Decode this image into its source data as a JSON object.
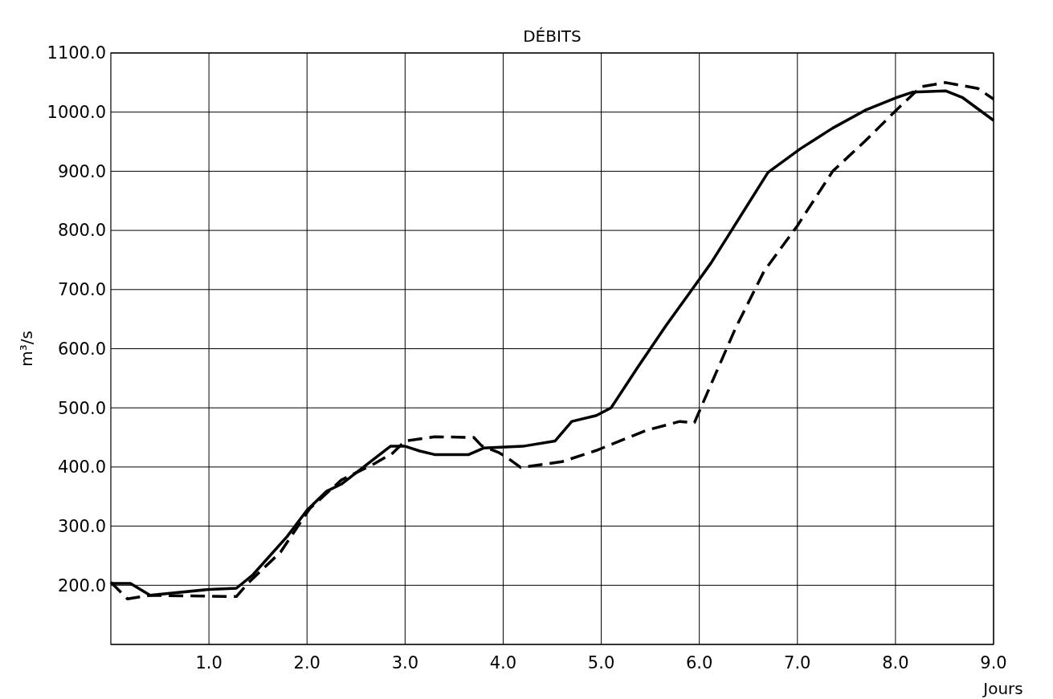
{
  "chart_data": {
    "type": "line",
    "title": "DÉBITS",
    "xlabel": "Jours",
    "ylabel": "m³/s",
    "xlim": [
      0,
      9
    ],
    "ylim": [
      100,
      1100
    ],
    "xticks": [
      {
        "value": 1,
        "label": "1.0"
      },
      {
        "value": 2,
        "label": "2.0"
      },
      {
        "value": 3,
        "label": "3.0"
      },
      {
        "value": 4,
        "label": "4.0"
      },
      {
        "value": 5,
        "label": "5.0"
      },
      {
        "value": 6,
        "label": "6.0"
      },
      {
        "value": 7,
        "label": "7.0"
      },
      {
        "value": 8,
        "label": "8.0"
      },
      {
        "value": 9,
        "label": "9.0"
      }
    ],
    "yticks": [
      {
        "value": 100,
        "label": null
      },
      {
        "value": 200,
        "label": "200.0"
      },
      {
        "value": 300,
        "label": "300.0"
      },
      {
        "value": 400,
        "label": "400.0"
      },
      {
        "value": 500,
        "label": "500.0"
      },
      {
        "value": 600,
        "label": "600.0"
      },
      {
        "value": 700,
        "label": "700.0"
      },
      {
        "value": 800,
        "label": "800.0"
      },
      {
        "value": 900,
        "label": "900.0"
      },
      {
        "value": 1000,
        "label": "1000.0"
      },
      {
        "value": 1100,
        "label": "1100.0"
      }
    ],
    "grid": true,
    "series": [
      {
        "color": "#000000",
        "line_style": "solid",
        "x": [
          0,
          0.2,
          0.4,
          1.0,
          1.28,
          1.45,
          1.8,
          2.0,
          2.2,
          2.35,
          2.85,
          3.0,
          3.15,
          3.3,
          3.65,
          3.8,
          4.2,
          4.53,
          4.7,
          4.95,
          5.1,
          5.37,
          5.66,
          5.93,
          6.12,
          6.7,
          7.03,
          7.36,
          7.69,
          8.0,
          8.18,
          8.51,
          8.68,
          9.0
        ],
        "values": [
          203,
          203,
          183,
          193,
          195,
          218,
          283,
          327,
          359,
          371,
          435,
          435,
          427,
          421,
          421,
          432,
          435,
          444,
          477,
          487,
          500,
          568,
          639,
          701,
          745,
          898,
          938,
          973,
          1003,
          1024,
          1034,
          1036,
          1025,
          986
        ]
      },
      {
        "color": "#000000",
        "line_style": "dashed",
        "x": [
          0,
          0.17,
          0.4,
          1.28,
          1.4,
          1.73,
          2.03,
          2.35,
          2.68,
          2.87,
          3.0,
          3.3,
          3.7,
          3.78,
          3.96,
          4.04,
          4.18,
          4.6,
          4.95,
          5.46,
          5.8,
          5.95,
          6.12,
          6.37,
          6.66,
          7.0,
          7.36,
          7.69,
          8.0,
          8.26,
          8.51,
          8.84,
          9.0
        ],
        "values": [
          205,
          177,
          183,
          181,
          204,
          256,
          330,
          378,
          405,
          423,
          444,
          451,
          450,
          436,
          424,
          416,
          399,
          409,
          428,
          462,
          477,
          475,
          540,
          635,
          731,
          808,
          900,
          951,
          1002,
          1043,
          1050,
          1040,
          1022
        ]
      }
    ]
  }
}
